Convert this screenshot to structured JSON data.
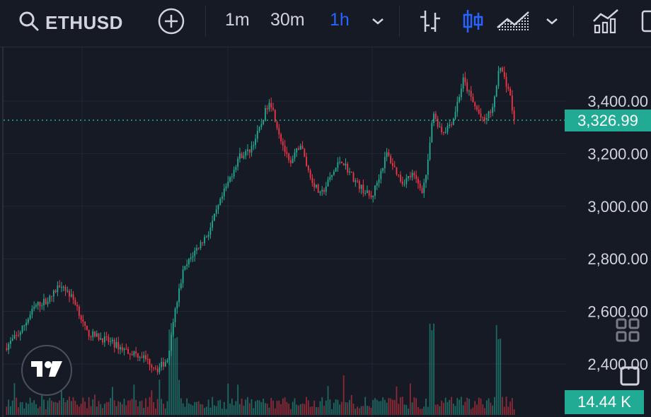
{
  "toolbar": {
    "symbol": "ETHUSD",
    "intervals": [
      "1m",
      "30m",
      "1h"
    ],
    "active_interval": "1h",
    "icons": [
      "search-icon",
      "add-circle-icon",
      "chevron-down-icon",
      "bar-chart-icon",
      "candles-icon",
      "area-chart-icon",
      "chevron-down-icon",
      "indicators-icon",
      "panel-icon"
    ]
  },
  "price_axis": {
    "labels": [
      "3,400.00",
      "3,200.00",
      "3,000.00",
      "2,800.00",
      "2,600.00",
      "2,400.00"
    ]
  },
  "last_price": "3,326.99",
  "volume_value": "14.44 K",
  "colors": {
    "up": "#22ab94",
    "down": "#f23645",
    "accent": "#2962ff",
    "background": "#161a25",
    "grid": "#232733"
  },
  "chart_data": {
    "type": "candlestick",
    "symbol": "ETHUSD",
    "interval": "1h",
    "ylim": [
      2360,
      3600
    ],
    "y_ticks": [
      2400,
      2600,
      2800,
      3000,
      3200,
      3400
    ],
    "last_price": 3326.99,
    "close_path": [
      [
        0,
        2460
      ],
      [
        0.03,
        2520
      ],
      [
        0.06,
        2620
      ],
      [
        0.09,
        2650
      ],
      [
        0.11,
        2710
      ],
      [
        0.14,
        2630
      ],
      [
        0.16,
        2520
      ],
      [
        0.2,
        2490
      ],
      [
        0.24,
        2450
      ],
      [
        0.27,
        2430
      ],
      [
        0.3,
        2380
      ],
      [
        0.32,
        2420
      ],
      [
        0.33,
        2560
      ],
      [
        0.35,
        2750
      ],
      [
        0.37,
        2820
      ],
      [
        0.4,
        2900
      ],
      [
        0.43,
        3050
      ],
      [
        0.46,
        3190
      ],
      [
        0.48,
        3210
      ],
      [
        0.5,
        3290
      ],
      [
        0.52,
        3410
      ],
      [
        0.54,
        3270
      ],
      [
        0.56,
        3150
      ],
      [
        0.58,
        3240
      ],
      [
        0.6,
        3110
      ],
      [
        0.62,
        3040
      ],
      [
        0.66,
        3180
      ],
      [
        0.69,
        3090
      ],
      [
        0.72,
        3030
      ],
      [
        0.75,
        3200
      ],
      [
        0.78,
        3090
      ],
      [
        0.8,
        3120
      ],
      [
        0.82,
        3060
      ],
      [
        0.83,
        3150
      ],
      [
        0.84,
        3350
      ],
      [
        0.86,
        3280
      ],
      [
        0.88,
        3330
      ],
      [
        0.9,
        3480
      ],
      [
        0.92,
        3390
      ],
      [
        0.94,
        3320
      ],
      [
        0.96,
        3380
      ],
      [
        0.97,
        3540
      ],
      [
        0.99,
        3440
      ],
      [
        1,
        3327
      ]
    ],
    "volume_last": 14440
  }
}
